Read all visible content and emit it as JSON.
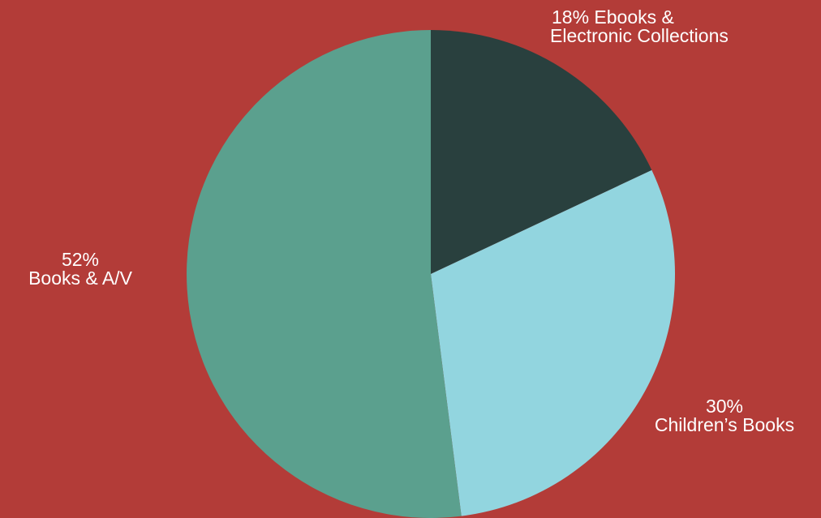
{
  "chart_data": {
    "type": "pie",
    "slices": [
      {
        "label_top": "18% Ebooks &",
        "label_bottom": "Electronic Collections",
        "value": 18,
        "color": "#29403e"
      },
      {
        "label_top": "30%",
        "label_bottom": "Children’s Books",
        "value": 30,
        "color": "#92d5df"
      },
      {
        "label_top": "52%",
        "label_bottom": "Books & A/V",
        "value": 52,
        "color": "#5ba08e"
      }
    ],
    "start_angle_deg": 0,
    "direction": "clockwise"
  },
  "colors": {
    "background": "#b33c38",
    "label_text": "#ffffff"
  }
}
